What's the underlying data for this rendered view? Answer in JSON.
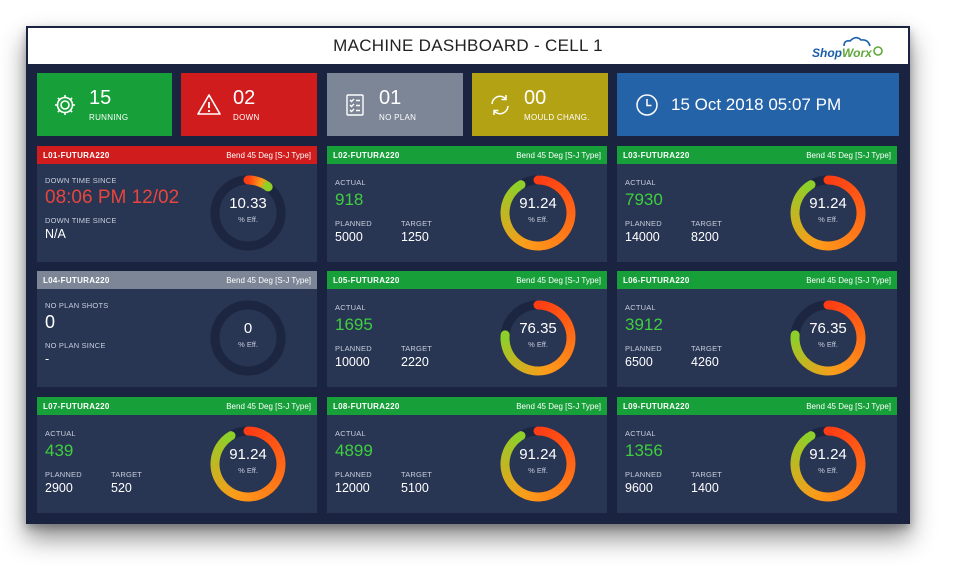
{
  "header": {
    "title": "MACHINE DASHBOARD - CELL 1",
    "logo": {
      "text_a": "Shop",
      "text_b": "Worx"
    }
  },
  "summary": {
    "running": {
      "count": "15",
      "label": "RUNNING",
      "color": "#17a03a",
      "icon": "gear-icon"
    },
    "down": {
      "count": "02",
      "label": "DOWN",
      "color": "#d01c1c",
      "icon": "warning-icon"
    },
    "no_plan": {
      "count": "01",
      "label": "NO PLAN",
      "color": "#7c8696",
      "icon": "checklist-icon"
    },
    "mould": {
      "count": "00",
      "label": "MOULD CHANG.",
      "color": "#b3a213",
      "icon": "refresh-icon"
    },
    "datetime": {
      "text": "15 Oct 2018 05:07 PM",
      "color": "#2563a8",
      "icon": "clock-icon"
    }
  },
  "machines": [
    {
      "id": "L01",
      "name": "L01-FUTURA220",
      "spec": "Bend 45 Deg [S-J Type]",
      "status": "down",
      "header_color": "#d01c1c",
      "label1": "DOWN TIME SINCE",
      "value1": "08:06 PM 12/02",
      "label2": "DOWN TIME SINCE",
      "value2": "N/A",
      "eff": "10.33",
      "eff_label": "% Eff.",
      "eff_value": 10.33
    },
    {
      "id": "L02",
      "name": "L02-FUTURA220",
      "spec": "Bend 45 Deg [S-J Type]",
      "status": "running",
      "header_color": "#17a03a",
      "actual_label": "ACTUAL",
      "actual": "918",
      "planned_label": "PLANNED",
      "planned": "5000",
      "target_label": "TARGET",
      "target": "1250",
      "eff": "91.24",
      "eff_label": "% Eff.",
      "eff_value": 91.24
    },
    {
      "id": "L03",
      "name": "L03-FUTURA220",
      "spec": "Bend 45 Deg [S-J Type]",
      "status": "running",
      "header_color": "#17a03a",
      "actual_label": "ACTUAL",
      "actual": "7930",
      "planned_label": "PLANNED",
      "planned": "14000",
      "target_label": "TARGET",
      "target": "8200",
      "eff": "91.24",
      "eff_label": "% Eff.",
      "eff_value": 91.24
    },
    {
      "id": "L04",
      "name": "L04-FUTURA220",
      "spec": "Bend 45 Deg [S-J Type]",
      "status": "no-plan",
      "header_color": "#7c8696",
      "label1": "NO PLAN SHOTS",
      "value1": "0",
      "label2": "NO PLAN SINCE",
      "value2": "-",
      "eff": "0",
      "eff_label": "% Eff.",
      "eff_value": 0
    },
    {
      "id": "L05",
      "name": "L05-FUTURA220",
      "spec": "Bend 45 Deg [S-J Type]",
      "status": "running",
      "header_color": "#17a03a",
      "actual_label": "ACTUAL",
      "actual": "1695",
      "planned_label": "PLANNED",
      "planned": "10000",
      "target_label": "TARGET",
      "target": "2220",
      "eff": "76.35",
      "eff_label": "% Eff.",
      "eff_value": 76.35
    },
    {
      "id": "L06",
      "name": "L06-FUTURA220",
      "spec": "Bend 45 Deg [S-J Type]",
      "status": "running",
      "header_color": "#17a03a",
      "actual_label": "ACTUAL",
      "actual": "3912",
      "planned_label": "PLANNED",
      "planned": "6500",
      "target_label": "TARGET",
      "target": "4260",
      "eff": "76.35",
      "eff_label": "% Eff.",
      "eff_value": 76.35
    },
    {
      "id": "L07",
      "name": "L07-FUTURA220",
      "spec": "Bend 45 Deg [S-J Type]",
      "status": "running",
      "header_color": "#17a03a",
      "actual_label": "ACTUAL",
      "actual": "439",
      "planned_label": "PLANNED",
      "planned": "2900",
      "target_label": "TARGET",
      "target": "520",
      "eff": "91.24",
      "eff_label": "% Eff.",
      "eff_value": 91.24
    },
    {
      "id": "L08",
      "name": "L08-FUTURA220",
      "spec": "Bend 45 Deg [S-J Type]",
      "status": "running",
      "header_color": "#17a03a",
      "actual_label": "ACTUAL",
      "actual": "4899",
      "planned_label": "PLANNED",
      "planned": "12000",
      "target_label": "TARGET",
      "target": "5100",
      "eff": "91.24",
      "eff_label": "% Eff.",
      "eff_value": 91.24
    },
    {
      "id": "L09",
      "name": "L09-FUTURA220",
      "spec": "Bend 45 Deg [S-J Type]",
      "status": "running",
      "header_color": "#17a03a",
      "actual_label": "ACTUAL",
      "actual": "1356",
      "planned_label": "PLANNED",
      "planned": "9600",
      "target_label": "TARGET",
      "target": "1400",
      "eff": "91.24",
      "eff_label": "% Eff.",
      "eff_value": 91.24
    }
  ],
  "colors": {
    "background": "#1a2440",
    "panel": "#283553",
    "actual_text": "#3fcf3f",
    "down_text": "#e8463c",
    "gauge_track": "#1c2640",
    "gauge_start": "#ff3d14",
    "gauge_mid": "#ff9a1a",
    "gauge_end": "#8fcf2a"
  }
}
